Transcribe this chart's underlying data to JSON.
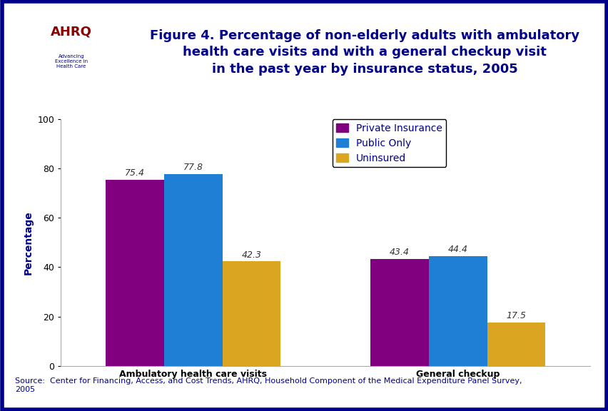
{
  "title": "Figure 4. Percentage of non-elderly adults with ambulatory\nhealth care visits and with a general checkup visit\nin the past year by insurance status, 2005",
  "ylabel": "Percentage",
  "categories": [
    "Ambulatory health care visits",
    "General checkup"
  ],
  "series": [
    {
      "label": "Private Insurance",
      "color": "#800080",
      "values": [
        75.4,
        43.4
      ]
    },
    {
      "label": "Public Only",
      "color": "#1F7FD4",
      "values": [
        77.8,
        44.4
      ]
    },
    {
      "label": "Uninsured",
      "color": "#DAA520",
      "values": [
        42.3,
        17.5
      ]
    }
  ],
  "ylim": [
    0,
    100
  ],
  "yticks": [
    0,
    20,
    40,
    60,
    80,
    100
  ],
  "bar_width": 0.22,
  "source_text": "Source:  Center for Financing, Access, and Cost Trends, AHRQ, Household Component of the Medical Expenditure Panel Survey,\n2005",
  "title_color": "#00008B",
  "outer_bg": "#FFFFFF",
  "plot_bg": "#FFFFFF",
  "border_color": "#00008B",
  "value_label_fontsize": 9,
  "axis_label_fontsize": 10,
  "tick_label_fontsize": 9,
  "legend_fontsize": 10,
  "title_fontsize": 13,
  "source_color": "#00008B"
}
